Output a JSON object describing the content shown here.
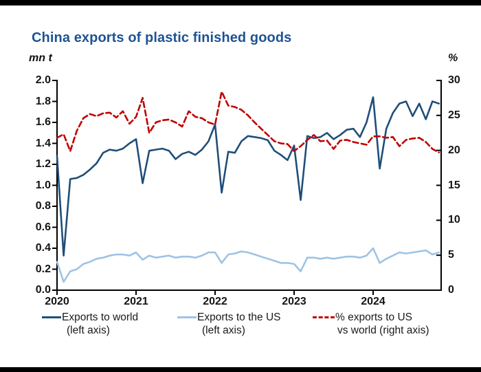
{
  "page": {
    "title": "China exports of plastic finished goods",
    "left_axis_unit": "mn t",
    "right_axis_unit": "%"
  },
  "legend": {
    "items": [
      {
        "line1": "Exports to world",
        "line2": "(left axis)",
        "color": "#1f4e79",
        "style": "solid"
      },
      {
        "line1": "Exports to the US",
        "line2": "(left axis)",
        "color": "#9dc3e6",
        "style": "solid"
      },
      {
        "line1": "% exports to US",
        "line2": "vs world (right axis)",
        "color": "#c00000",
        "style": "dashed"
      }
    ]
  },
  "chart_data": {
    "type": "line",
    "title": "China exports of plastic finished goods",
    "xlabel": "",
    "left_ylabel": "mn t",
    "right_ylabel": "%",
    "left_ylim": [
      0.0,
      2.0
    ],
    "right_ylim": [
      0,
      30
    ],
    "left_tick_labels": [
      "0.0",
      "0.2",
      "0.4",
      "0.6",
      "0.8",
      "1.0",
      "1.2",
      "1.4",
      "1.6",
      "1.8",
      "2.0"
    ],
    "right_tick_labels": [
      "0",
      "5",
      "10",
      "15",
      "20",
      "25",
      "30"
    ],
    "x_tick_labels": [
      "2020",
      "2021",
      "2022",
      "2023",
      "2024"
    ],
    "grid": false,
    "legend_position": "bottom",
    "frequency": "monthly",
    "months": [
      "2020-01",
      "2020-02",
      "2020-03",
      "2020-04",
      "2020-05",
      "2020-06",
      "2020-07",
      "2020-08",
      "2020-09",
      "2020-10",
      "2020-11",
      "2020-12",
      "2021-01",
      "2021-02",
      "2021-03",
      "2021-04",
      "2021-05",
      "2021-06",
      "2021-07",
      "2021-08",
      "2021-09",
      "2021-10",
      "2021-11",
      "2021-12",
      "2022-01",
      "2022-02",
      "2022-03",
      "2022-04",
      "2022-05",
      "2022-06",
      "2022-07",
      "2022-08",
      "2022-09",
      "2022-10",
      "2022-11",
      "2022-12",
      "2023-01",
      "2023-02",
      "2023-03",
      "2023-04",
      "2023-05",
      "2023-06",
      "2023-07",
      "2023-08",
      "2023-09",
      "2023-10",
      "2023-11",
      "2023-12",
      "2024-01",
      "2024-02",
      "2024-03",
      "2024-04",
      "2024-05",
      "2024-06",
      "2024-07",
      "2024-08",
      "2024-09",
      "2024-10",
      "2024-11"
    ],
    "series": [
      {
        "name": "Exports to world (left axis)",
        "axis": "left",
        "color": "#1f4e79",
        "style": "solid",
        "values": [
          1.28,
          0.33,
          1.06,
          1.07,
          1.1,
          1.15,
          1.21,
          1.31,
          1.34,
          1.33,
          1.35,
          1.4,
          1.44,
          1.02,
          1.33,
          1.34,
          1.35,
          1.33,
          1.25,
          1.3,
          1.32,
          1.29,
          1.34,
          1.42,
          1.58,
          0.93,
          1.32,
          1.31,
          1.42,
          1.47,
          1.46,
          1.45,
          1.43,
          1.33,
          1.29,
          1.24,
          1.38,
          0.86,
          1.47,
          1.45,
          1.46,
          1.5,
          1.44,
          1.48,
          1.53,
          1.54,
          1.46,
          1.6,
          1.84,
          1.16,
          1.54,
          1.69,
          1.78,
          1.8,
          1.66,
          1.78,
          1.63,
          1.8,
          1.78
        ]
      },
      {
        "name": "Exports to the US (left axis)",
        "axis": "left",
        "color": "#9dc3e6",
        "style": "solid",
        "values": [
          0.27,
          0.08,
          0.18,
          0.2,
          0.25,
          0.27,
          0.3,
          0.31,
          0.33,
          0.34,
          0.34,
          0.33,
          0.36,
          0.29,
          0.33,
          0.31,
          0.32,
          0.33,
          0.31,
          0.32,
          0.32,
          0.31,
          0.33,
          0.36,
          0.36,
          0.26,
          0.34,
          0.35,
          0.37,
          0.36,
          0.34,
          0.32,
          0.3,
          0.28,
          0.26,
          0.26,
          0.25,
          0.18,
          0.31,
          0.31,
          0.3,
          0.31,
          0.3,
          0.31,
          0.32,
          0.32,
          0.31,
          0.33,
          0.4,
          0.26,
          0.3,
          0.33,
          0.36,
          0.35,
          0.36,
          0.37,
          0.38,
          0.34,
          0.36
        ]
      },
      {
        "name": "% exports to US vs world (right axis)",
        "axis": "right",
        "color": "#c00000",
        "style": "dashed",
        "values": [
          21.8,
          22.3,
          19.9,
          22.8,
          24.6,
          25.2,
          24.9,
          25.3,
          25.4,
          24.7,
          25.6,
          23.8,
          24.8,
          27.5,
          22.5,
          24.0,
          24.3,
          24.4,
          24.0,
          23.4,
          25.6,
          24.8,
          24.6,
          24.0,
          23.7,
          28.4,
          26.4,
          26.2,
          25.8,
          25.0,
          24.0,
          23.1,
          22.2,
          21.3,
          21.0,
          20.9,
          19.9,
          20.6,
          21.5,
          22.2,
          21.3,
          21.4,
          20.2,
          21.4,
          21.5,
          21.2,
          21.0,
          20.8,
          22.0,
          22.0,
          21.8,
          21.9,
          20.6,
          21.5,
          21.7,
          21.8,
          21.2,
          20.2,
          19.7
        ]
      }
    ]
  }
}
